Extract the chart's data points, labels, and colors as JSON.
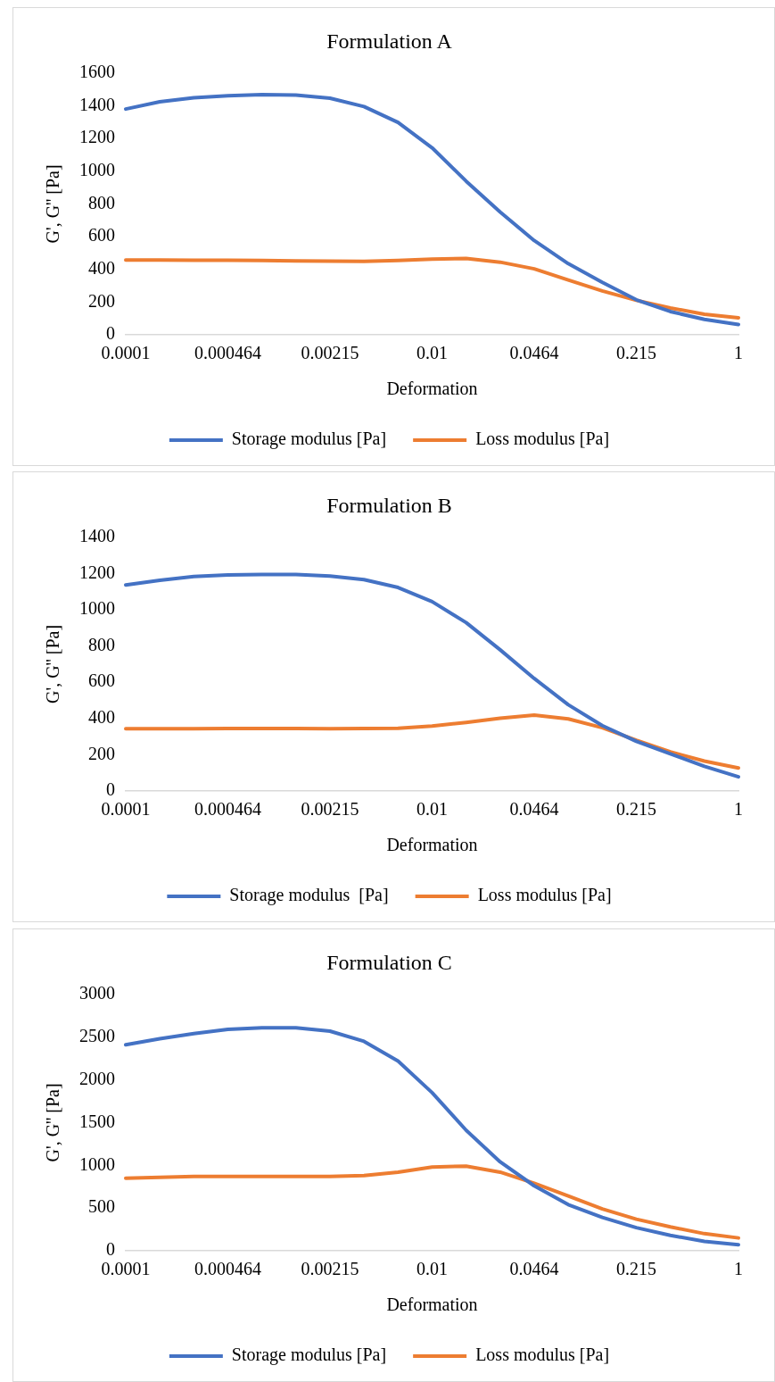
{
  "chart_data": [
    {
      "type": "line",
      "title": "Formulation A",
      "xlabel": "Deformation",
      "ylabel": "G', G'' [Pa]",
      "categories": [
        "0.0001",
        null,
        null,
        "0.000464",
        null,
        null,
        "0.00215",
        null,
        null,
        "0.01",
        null,
        null,
        "0.0464",
        null,
        null,
        "0.215",
        null,
        null,
        "1"
      ],
      "series": [
        {
          "name": "Storage modulus [Pa]",
          "color": "#4472c4",
          "values": [
            1380,
            1424,
            1449,
            1461,
            1468,
            1465,
            1446,
            1395,
            1298,
            1143,
            939,
            750,
            576,
            435,
            321,
            214,
            142,
            94,
            63
          ]
        },
        {
          "name": "Loss modulus [Pa]",
          "color": "#ed7d31",
          "values": [
            457,
            457,
            456,
            455,
            454,
            452,
            450,
            449,
            454,
            463,
            466,
            444,
            403,
            335,
            268,
            211,
            164,
            126,
            104
          ]
        }
      ],
      "ylim": [
        0,
        1600
      ],
      "yticks": [
        0,
        200,
        400,
        600,
        800,
        1000,
        1200,
        1400,
        1600
      ],
      "legend": "bottom",
      "marker": "none",
      "line_style": "solid"
    },
    {
      "type": "line",
      "title": "Formulation B",
      "xlabel": "Deformation",
      "ylabel": "G', G'' [Pa]",
      "categories": [
        "0.0001",
        null,
        null,
        "0.000464",
        null,
        null,
        "0.00215",
        null,
        null,
        "0.01",
        null,
        null,
        "0.0464",
        null,
        null,
        "0.215",
        null,
        null,
        "1"
      ],
      "series": [
        {
          "name": "Storage modulus  [Pa]",
          "color": "#4472c4",
          "values": [
            1137,
            1163,
            1183,
            1192,
            1195,
            1195,
            1186,
            1166,
            1123,
            1045,
            929,
            779,
            621,
            476,
            361,
            274,
            205,
            136,
            78
          ]
        },
        {
          "name": "Loss modulus [Pa]",
          "color": "#ed7d31",
          "values": [
            343,
            343,
            344,
            345,
            345,
            345,
            344,
            345,
            346,
            358,
            378,
            401,
            419,
            398,
            349,
            280,
            216,
            165,
            127
          ]
        }
      ],
      "ylim": [
        0,
        1400
      ],
      "yticks": [
        0,
        200,
        400,
        600,
        800,
        1000,
        1200,
        1400
      ],
      "legend": "bottom",
      "marker": "none",
      "line_style": "solid"
    },
    {
      "type": "line",
      "title": "Formulation C",
      "xlabel": "Deformation",
      "ylabel": "G', G'' [Pa]",
      "categories": [
        "0.0001",
        null,
        null,
        "0.000464",
        null,
        null,
        "0.00215",
        null,
        null,
        "0.01",
        null,
        null,
        "0.0464",
        null,
        null,
        "0.215",
        null,
        null,
        "1"
      ],
      "series": [
        {
          "name": "Storage modulus [Pa]",
          "color": "#4472c4",
          "values": [
            2410,
            2480,
            2540,
            2590,
            2610,
            2610,
            2570,
            2450,
            2220,
            1850,
            1410,
            1040,
            760,
            540,
            390,
            270,
            180,
            110,
            70
          ]
        },
        {
          "name": "Loss modulus [Pa]",
          "color": "#ed7d31",
          "values": [
            850,
            860,
            870,
            870,
            870,
            870,
            870,
            880,
            920,
            980,
            990,
            920,
            790,
            640,
            490,
            370,
            280,
            200,
            150
          ]
        }
      ],
      "ylim": [
        0,
        3000
      ],
      "yticks": [
        0,
        500,
        1000,
        1500,
        2000,
        2500,
        3000
      ],
      "legend": "bottom",
      "marker": "none",
      "line_style": "solid"
    }
  ]
}
